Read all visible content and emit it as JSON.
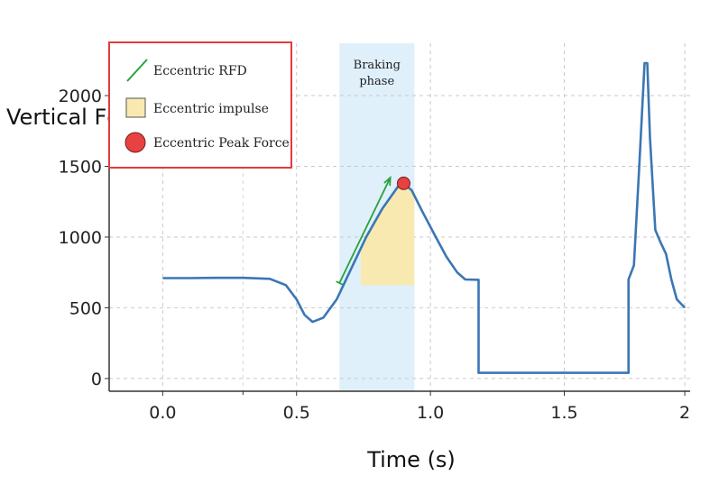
{
  "chart_data": {
    "type": "line",
    "title": "",
    "xlabel": "Time (s)",
    "ylabel": "Vertical Fc",
    "xlim": [
      -0.2,
      1.97
    ],
    "ylim": [
      -90,
      2370
    ],
    "x_ticks": [
      {
        "value": 0.0,
        "label": "0.0"
      },
      {
        "value": 0.5,
        "label": "0.5"
      },
      {
        "value": 1.0,
        "label": "1.0"
      },
      {
        "value": 1.5,
        "label": "1.5"
      },
      {
        "value": 1.95,
        "label": "2"
      }
    ],
    "y_ticks": [
      {
        "value": 0,
        "label": "0"
      },
      {
        "value": 500,
        "label": "500"
      },
      {
        "value": 1000,
        "label": "1000"
      },
      {
        "value": 1500,
        "label": "1500"
      },
      {
        "value": 2000,
        "label": "2000"
      }
    ],
    "grid": true,
    "phase_band": {
      "x_start": 0.66,
      "x_end": 0.94,
      "label_line1": "Braking",
      "label_line2": "phase",
      "color": "#dff0fb"
    },
    "series": [
      {
        "color": "#3b76b5",
        "points": [
          [
            0.0,
            710
          ],
          [
            0.1,
            710
          ],
          [
            0.2,
            712
          ],
          [
            0.3,
            712
          ],
          [
            0.4,
            705
          ],
          [
            0.46,
            660
          ],
          [
            0.5,
            560
          ],
          [
            0.53,
            450
          ],
          [
            0.56,
            400
          ],
          [
            0.6,
            430
          ],
          [
            0.65,
            560
          ],
          [
            0.7,
            760
          ],
          [
            0.76,
            1000
          ],
          [
            0.82,
            1200
          ],
          [
            0.88,
            1360
          ],
          [
            0.9,
            1380
          ],
          [
            0.93,
            1330
          ],
          [
            0.97,
            1180
          ],
          [
            1.02,
            1000
          ],
          [
            1.06,
            860
          ],
          [
            1.1,
            750
          ],
          [
            1.13,
            700
          ],
          [
            1.18,
            698
          ],
          [
            1.18,
            40
          ],
          [
            1.6,
            40
          ],
          [
            1.74,
            40
          ],
          [
            1.74,
            700
          ],
          [
            1.76,
            800
          ],
          [
            1.78,
            1500
          ],
          [
            1.8,
            2230
          ],
          [
            1.81,
            2230
          ],
          [
            1.82,
            1700
          ],
          [
            1.84,
            1050
          ],
          [
            1.86,
            960
          ],
          [
            1.88,
            880
          ],
          [
            1.9,
            700
          ],
          [
            1.92,
            560
          ],
          [
            1.95,
            500
          ]
        ]
      }
    ],
    "annotations": {
      "rfd_line": {
        "x_start": 0.66,
        "y_start": 675,
        "x_end": 0.85,
        "y_end": 1420,
        "color": "#2aa13c"
      },
      "impulse_area": {
        "x_start": 0.74,
        "x_end": 0.94,
        "y_base": 660,
        "color": "#f8e9b0"
      },
      "peak_point": {
        "x": 0.9,
        "y": 1380,
        "color": "#e84141"
      }
    },
    "legend": {
      "placement": "top-left",
      "border_color": "#e13c3c",
      "entries": [
        {
          "label": "Eccentric RFD",
          "kind": "line",
          "color": "#2aa13c"
        },
        {
          "label": "Eccentric impulse",
          "kind": "square",
          "color": "#f8e9b0"
        },
        {
          "label": "Eccentric Peak Force",
          "kind": "dot",
          "color": "#e84141"
        }
      ]
    }
  }
}
